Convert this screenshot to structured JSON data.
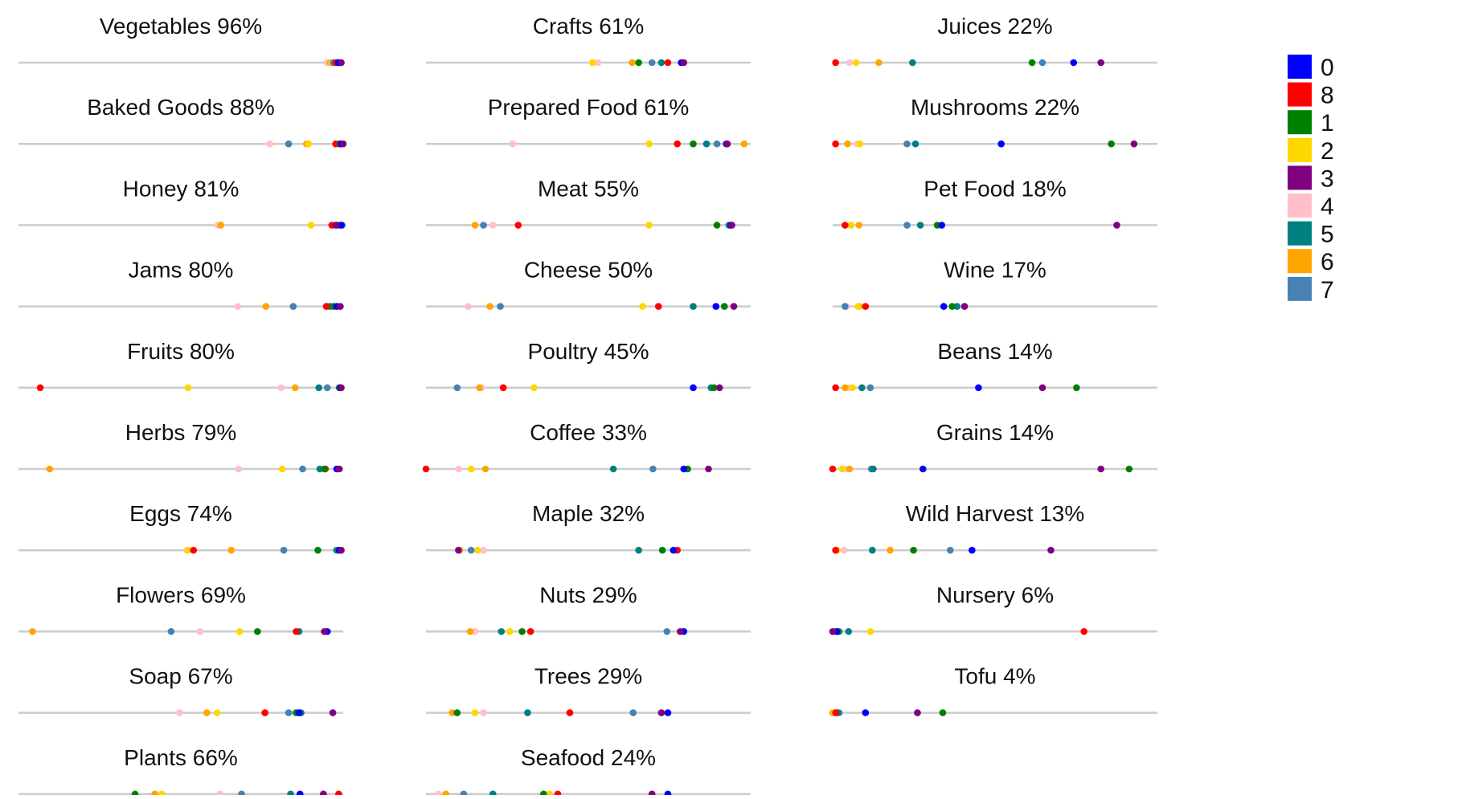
{
  "chart_data": {
    "type": "scatter",
    "subtype": "small-multiple strip plots",
    "xlim": [
      0,
      100
    ],
    "legend": {
      "placement": "right",
      "entries": [
        {
          "label": "0",
          "color": "#0000ff"
        },
        {
          "label": "8",
          "color": "#ff0000"
        },
        {
          "label": "1",
          "color": "#008000"
        },
        {
          "label": "2",
          "color": "#ffd700"
        },
        {
          "label": "3",
          "color": "#800080"
        },
        {
          "label": "4",
          "color": "#ffc0cb"
        },
        {
          "label": "5",
          "color": "#008080"
        },
        {
          "label": "6",
          "color": "#ffa500"
        },
        {
          "label": "7",
          "color": "#4682b4"
        }
      ]
    },
    "series_order": [
      "0",
      "1",
      "2",
      "3",
      "4",
      "5",
      "6",
      "7",
      "8"
    ],
    "panels": [
      {
        "title": "Vegetables 96%",
        "values": {
          "0": 98.5,
          "1": 99,
          "2": 96.5,
          "3": 99.4,
          "4": 95,
          "5": 98,
          "6": 96,
          "7": 97,
          "8": 97.7
        }
      },
      {
        "title": "Baked Goods 88%",
        "values": {
          "0": 99.4,
          "1": 99.1,
          "2": 89.3,
          "3": 100,
          "4": 77.4,
          "5": 98.8,
          "6": 88.7,
          "7": 83.2,
          "8": 97.7
        }
      },
      {
        "title": "Honey 81%",
        "values": {
          "0": 99.4,
          "1": 98,
          "2": 90.1,
          "3": 97.7,
          "4": 61.4,
          "5": 98.5,
          "6": 62.3,
          "7": 99.7,
          "8": 96.5
        }
      },
      {
        "title": "Jams 80%",
        "values": {
          "0": 98,
          "1": 97.1,
          "2": 95.5,
          "3": 99.1,
          "4": 67.5,
          "5": 96,
          "6": 76.2,
          "7": 84.6,
          "8": 94.8
        }
      },
      {
        "title": "Fruits 80%",
        "values": {
          "0": 99.1,
          "1": 98.8,
          "2": 52.2,
          "3": 99.4,
          "4": 80.9,
          "5": 92.5,
          "6": 85.2,
          "7": 95.1,
          "8": 6.7
        }
      },
      {
        "title": "Herbs 79%",
        "values": {
          "0": 98,
          "1": 94.2,
          "2": 81.2,
          "3": 98.8,
          "4": 67.8,
          "5": 92.8,
          "6": 9.6,
          "7": 87.5,
          "8": 94.5
        }
      },
      {
        "title": "Eggs 74%",
        "values": {
          "0": 98.8,
          "1": 92.2,
          "2": 52.2,
          "3": 99.4,
          "4": 51.9,
          "5": 98,
          "6": 65.5,
          "7": 81.7,
          "8": 53.9
        }
      },
      {
        "title": "Flowers 69%",
        "values": {
          "0": 95.1,
          "1": 73.6,
          "2": 68.1,
          "3": 94.2,
          "4": 55.9,
          "5": 86.4,
          "6": 4.3,
          "7": 47,
          "8": 85.5
        }
      },
      {
        "title": "Soap 67%",
        "values": {
          "0": 86.4,
          "1": 85.5,
          "2": 61.2,
          "3": 96.8,
          "4": 49.6,
          "5": 87,
          "6": 58,
          "7": 83.2,
          "8": 75.9
        }
      },
      {
        "title": "Plants 66%",
        "values": {
          "0": 86.7,
          "1": 35.9,
          "2": 44.1,
          "3": 93.9,
          "4": 62,
          "5": 83.8,
          "6": 42,
          "7": 68.7,
          "8": 98.6
        }
      },
      {
        "title": "Crafts 61%",
        "values": {
          "0": 78.6,
          "1": 65.5,
          "2": 51.3,
          "3": 79.4,
          "4": 53,
          "5": 72.5,
          "6": 63.5,
          "7": 69.6,
          "8": 74.5
        }
      },
      {
        "title": "Prepared Food 61%",
        "values": {
          "0": 92.5,
          "1": 82.3,
          "2": 68.7,
          "3": 92.8,
          "4": 26.7,
          "5": 86.4,
          "6": 98,
          "7": 89.6,
          "8": 77.4
        }
      },
      {
        "title": "Meat 55%",
        "values": {
          "0": 93.9,
          "1": 89.6,
          "2": 68.7,
          "3": 94.2,
          "4": 20.6,
          "5": 93.3,
          "6": 15.1,
          "7": 17.7,
          "8": 28.4
        }
      },
      {
        "title": "Cheese 50%",
        "values": {
          "0": 89.3,
          "1": 91.9,
          "2": 66.7,
          "3": 94.8,
          "4": 13,
          "5": 82.3,
          "6": 19.7,
          "7": 22.9,
          "8": 71.6
        }
      },
      {
        "title": "Poultry 45%",
        "values": {
          "0": 82.3,
          "1": 88.7,
          "2": 33.3,
          "3": 90.4,
          "4": 17.1,
          "5": 87.8,
          "6": 16.5,
          "7": 9.6,
          "8": 23.8
        }
      },
      {
        "title": "Coffee 33%",
        "values": {
          "0": 79.4,
          "1": 80.6,
          "2": 13.9,
          "3": 87,
          "4": 10.1,
          "5": 57.7,
          "6": 18.3,
          "7": 69.9,
          "8": 0
        }
      },
      {
        "title": "Maple 32%",
        "values": {
          "0": 76.2,
          "1": 72.8,
          "2": 15.9,
          "3": 10,
          "4": 17.7,
          "5": 65.5,
          "6": 10.4,
          "7": 13.9,
          "8": 77.4
        }
      },
      {
        "title": "Nuts 29%",
        "values": {
          "0": 79.4,
          "1": 29.6,
          "2": 25.8,
          "3": 78.3,
          "4": 15.1,
          "5": 23.2,
          "6": 13.6,
          "7": 74.2,
          "8": 32.2
        }
      },
      {
        "title": "Trees 29%",
        "values": {
          "0": 74.5,
          "1": 9.6,
          "2": 15.1,
          "3": 72.5,
          "4": 17.7,
          "5": 31.3,
          "6": 8.1,
          "7": 63.8,
          "8": 44.3
        }
      },
      {
        "title": "Seafood 24%",
        "values": {
          "0": 74.5,
          "1": 36.2,
          "2": 38,
          "3": 69.6,
          "4": 3.8,
          "5": 20.6,
          "6": 6.1,
          "7": 11.6,
          "8": 40.6
        }
      },
      {
        "title": "Juices 22%",
        "values": {
          "0": 74.2,
          "1": 61.4,
          "2": 7.2,
          "3": 82.6,
          "4": 5.2,
          "5": 24.6,
          "6": 14.2,
          "7": 64.6,
          "8": 0.9
        }
      },
      {
        "title": "Mushrooms 22%",
        "values": {
          "0": 51.9,
          "1": 85.8,
          "2": 8.4,
          "3": 92.8,
          "4": 7.5,
          "5": 25.5,
          "6": 4.6,
          "7": 22.9,
          "8": 0.9
        }
      },
      {
        "title": "Pet Food 18%",
        "values": {
          "0": 33.6,
          "1": 32.2,
          "2": 5.5,
          "3": 87.5,
          "4": 5.8,
          "5": 27,
          "6": 8.1,
          "7": 22.9,
          "8": 3.8
        }
      },
      {
        "title": "Wine 17%",
        "values": {
          "0": 34.2,
          "1": 36.8,
          "2": 7.8,
          "3": 40.6,
          "4": 4.3,
          "5": 38.3,
          "6": 8.1,
          "7": 3.8,
          "8": 10.1
        }
      },
      {
        "title": "Beans 14%",
        "values": {
          "0": 44.9,
          "1": 75.1,
          "2": 6.1,
          "3": 64.6,
          "4": 4.9,
          "5": 9,
          "6": 3.8,
          "7": 11.6,
          "8": 0.9
        }
      },
      {
        "title": "Grains 14%",
        "values": {
          "0": 27.8,
          "1": 91.3,
          "2": 2.9,
          "3": 82.6,
          "4": 4.1,
          "5": 12.5,
          "6": 5.2,
          "7": 11.9,
          "8": 0
        }
      },
      {
        "title": "Wild Harvest 13%",
        "values": {
          "0": 42.9,
          "1": 24.9,
          "2": 1.4,
          "3": 67.2,
          "4": 3.5,
          "5": 12.2,
          "6": 17.7,
          "7": 36.2,
          "8": 0.9
        }
      },
      {
        "title": "Nursery 6%",
        "values": {
          "0": 1.2,
          "1": 1.7,
          "2": 11.6,
          "3": 0,
          "4": 0.3,
          "5": 4.9,
          "6": 0.6,
          "7": 2,
          "8": 77.4
        }
      },
      {
        "title": "Tofu 4%",
        "values": {
          "0": 10.1,
          "1": 33.9,
          "2": 0.6,
          "3": 26.1,
          "4": 0.3,
          "5": 1.5,
          "6": 0,
          "7": 2,
          "8": 0.9
        }
      }
    ]
  }
}
